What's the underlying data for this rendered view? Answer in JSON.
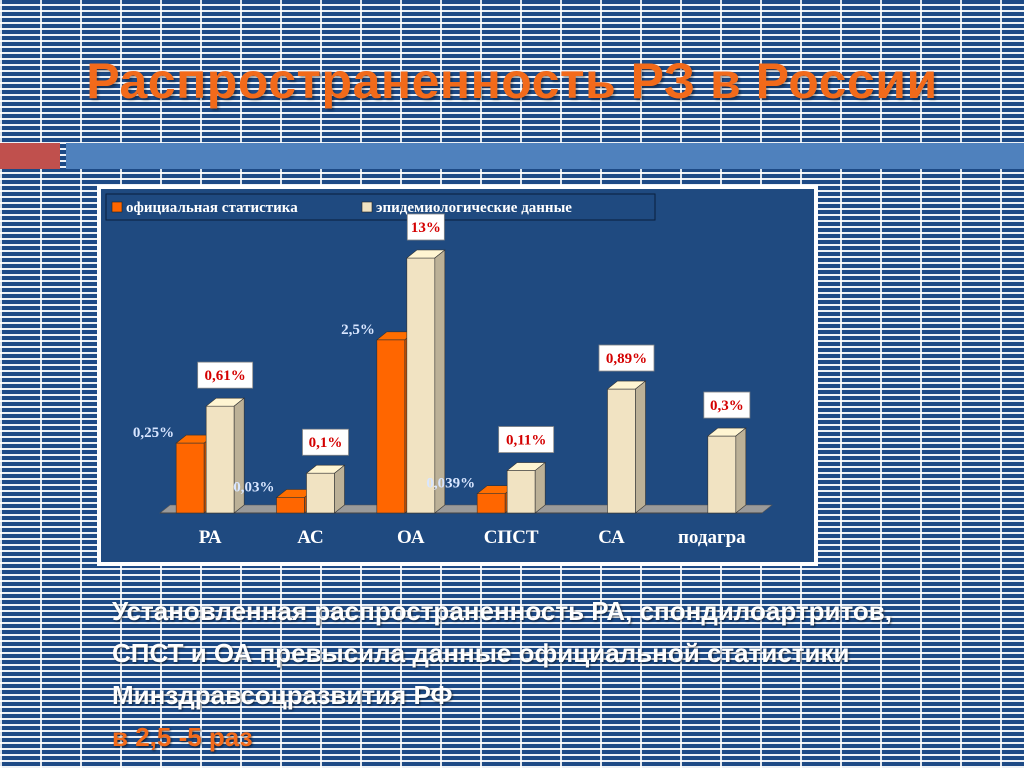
{
  "slide": {
    "title": "Распространенность РЗ в России",
    "caption": "Установленная распространенность РА, спондилоартритов, СПСТ и ОА  превысила данные официальной статистики Минздравсоцразвития РФ",
    "caption_accent": "в 2,5 -5 раз",
    "colors": {
      "title": "#f26a1a",
      "accent_red": "#c0504d",
      "accent_blue": "#4f81bd",
      "chart_bg": "#1f4a80"
    }
  },
  "chart_data": {
    "type": "bar",
    "categories": [
      "РА",
      "АС",
      "ОА",
      "СПСТ",
      "СА",
      "подагра"
    ],
    "series": [
      {
        "name": "официальная статистика",
        "color": "#ff6600",
        "values": [
          0.25,
          0.03,
          2.5,
          0.039,
          null,
          null
        ],
        "labels": [
          "0,25%",
          "0,03%",
          "2,5%",
          "0,039%",
          "",
          ""
        ]
      },
      {
        "name": "эпидемиологические данные",
        "color": "#f1e3c2",
        "values": [
          0.61,
          0.1,
          13,
          0.11,
          0.89,
          0.3
        ],
        "labels": [
          "0,61%",
          "0,1%",
          "13%",
          "0,11%",
          "0,89%",
          "0,3%"
        ]
      }
    ],
    "legend": "top-left",
    "grid": false
  }
}
